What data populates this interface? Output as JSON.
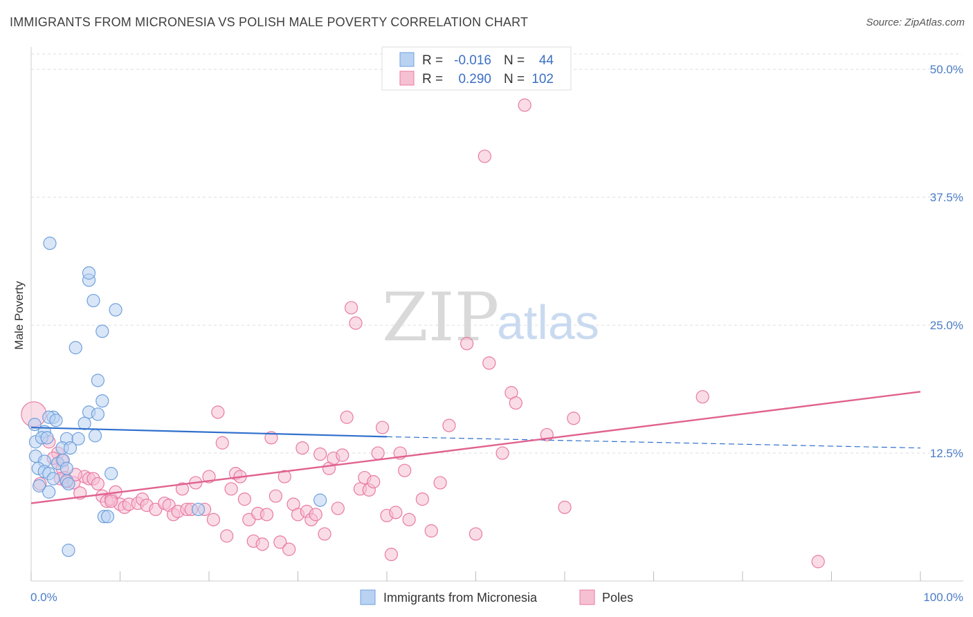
{
  "title": "IMMIGRANTS FROM MICRONESIA VS POLISH MALE POVERTY CORRELATION CHART",
  "source": "Source: ZipAtlas.com",
  "watermark": {
    "zip": "ZIP",
    "atlas": "atlas"
  },
  "colors": {
    "blue": "#6fa0dc",
    "blue_fill": "#b9d2f2",
    "pink": "#e87aa0",
    "pink_fill": "#f6c0d3",
    "blue_line": "#2f6fcc",
    "pink_line": "#e0628f",
    "axis_text": "#4a7cc7",
    "grid": "#dddddd"
  },
  "legend": {
    "rows": [
      {
        "r_label": "R =",
        "r_value": "-0.016",
        "n_label": "N =",
        "n_value": "44"
      },
      {
        "r_label": "R =",
        "r_value": "0.290",
        "n_label": "N =",
        "n_value": "102"
      }
    ]
  },
  "chart_data": {
    "type": "scatter",
    "title": "IMMIGRANTS FROM MICRONESIA VS POLISH MALE POVERTY CORRELATION CHART",
    "xlabel": "",
    "ylabel": "Male Poverty",
    "xlim": [
      0,
      100
    ],
    "ylim": [
      0,
      51.5
    ],
    "x_tick_labels": [
      "0.0%",
      "100.0%"
    ],
    "y_ticks": [
      12.5,
      25.0,
      37.5,
      50.0
    ],
    "y_tick_labels": [
      "12.5%",
      "25.0%",
      "37.5%",
      "50.0%"
    ],
    "grid": true,
    "legend_position": "top-center",
    "series": [
      {
        "name": "Immigrants from Micronesia",
        "color": "#6fa0dc",
        "trend": {
          "x": [
            0,
            40
          ],
          "y": [
            15.0,
            14.1
          ],
          "dashed_to": [
            100,
            13.0
          ]
        },
        "points": [
          [
            2.1,
            33.0
          ],
          [
            6.5,
            29.4
          ],
          [
            6.5,
            30.1
          ],
          [
            7.0,
            27.4
          ],
          [
            9.5,
            26.5
          ],
          [
            8.0,
            24.4
          ],
          [
            5.0,
            22.8
          ],
          [
            7.5,
            19.6
          ],
          [
            8.0,
            17.6
          ],
          [
            2.5,
            16.0
          ],
          [
            6.5,
            16.5
          ],
          [
            2.0,
            16.0
          ],
          [
            7.5,
            16.3
          ],
          [
            2.8,
            15.7
          ],
          [
            6.0,
            15.4
          ],
          [
            0.5,
            13.6
          ],
          [
            1.5,
            14.6
          ],
          [
            1.2,
            14.0
          ],
          [
            1.8,
            14.0
          ],
          [
            4.0,
            13.9
          ],
          [
            5.3,
            13.9
          ],
          [
            7.2,
            14.2
          ],
          [
            3.5,
            13.0
          ],
          [
            4.4,
            13.0
          ],
          [
            0.5,
            12.2
          ],
          [
            1.5,
            11.7
          ],
          [
            3.0,
            11.5
          ],
          [
            3.6,
            11.8
          ],
          [
            4.0,
            11.0
          ],
          [
            0.8,
            11.0
          ],
          [
            1.5,
            10.7
          ],
          [
            2.0,
            10.5
          ],
          [
            2.5,
            10.0
          ],
          [
            4.0,
            9.8
          ],
          [
            9.0,
            10.5
          ],
          [
            0.9,
            9.3
          ],
          [
            2.0,
            8.7
          ],
          [
            4.2,
            9.5
          ],
          [
            8.2,
            6.3
          ],
          [
            8.6,
            6.3
          ],
          [
            18.8,
            7.0
          ],
          [
            32.5,
            7.9
          ],
          [
            4.2,
            3.0
          ],
          [
            0.4,
            15.3
          ]
        ]
      },
      {
        "name": "Poles",
        "color": "#e87aa0",
        "trend": {
          "x": [
            0,
            100
          ],
          "y": [
            7.6,
            18.5
          ]
        },
        "points": [
          [
            0.3,
            16.3
          ],
          [
            2.0,
            13.6
          ],
          [
            3.0,
            12.5
          ],
          [
            3.0,
            11.5
          ],
          [
            3.5,
            11.0
          ],
          [
            3.8,
            10.1
          ],
          [
            3.3,
            10.0
          ],
          [
            4.0,
            9.7
          ],
          [
            4.8,
            9.6
          ],
          [
            5.5,
            8.6
          ],
          [
            6.0,
            10.2
          ],
          [
            6.5,
            10.0
          ],
          [
            7.0,
            10.0
          ],
          [
            7.5,
            9.5
          ],
          [
            8.0,
            8.3
          ],
          [
            8.5,
            7.8
          ],
          [
            9.0,
            8.0
          ],
          [
            9.5,
            8.7
          ],
          [
            10.0,
            7.5
          ],
          [
            10.5,
            7.2
          ],
          [
            11.0,
            7.5
          ],
          [
            12.0,
            7.6
          ],
          [
            12.5,
            8.0
          ],
          [
            13.0,
            7.4
          ],
          [
            14.0,
            7.0
          ],
          [
            15.0,
            7.6
          ],
          [
            15.5,
            7.4
          ],
          [
            16.0,
            6.5
          ],
          [
            16.5,
            6.8
          ],
          [
            17.0,
            9.0
          ],
          [
            17.5,
            7.0
          ],
          [
            18.0,
            7.0
          ],
          [
            18.5,
            9.6
          ],
          [
            19.5,
            7.0
          ],
          [
            20.0,
            10.2
          ],
          [
            20.5,
            6.0
          ],
          [
            21.0,
            16.5
          ],
          [
            21.5,
            13.5
          ],
          [
            22.0,
            4.4
          ],
          [
            22.5,
            9.0
          ],
          [
            23.0,
            10.5
          ],
          [
            23.5,
            10.2
          ],
          [
            24.0,
            8.0
          ],
          [
            24.5,
            6.0
          ],
          [
            25.0,
            3.9
          ],
          [
            25.5,
            6.6
          ],
          [
            26.0,
            3.6
          ],
          [
            26.5,
            6.5
          ],
          [
            27.0,
            14.0
          ],
          [
            27.5,
            8.3
          ],
          [
            28.0,
            3.8
          ],
          [
            28.5,
            10.2
          ],
          [
            29.0,
            3.1
          ],
          [
            29.5,
            7.5
          ],
          [
            30.0,
            6.5
          ],
          [
            30.5,
            13.0
          ],
          [
            31.0,
            6.8
          ],
          [
            31.5,
            6.0
          ],
          [
            32.0,
            6.5
          ],
          [
            32.5,
            12.4
          ],
          [
            33.0,
            4.6
          ],
          [
            33.5,
            11.0
          ],
          [
            34.0,
            12.0
          ],
          [
            34.5,
            7.1
          ],
          [
            35.0,
            12.3
          ],
          [
            35.5,
            16.0
          ],
          [
            36.0,
            26.7
          ],
          [
            36.5,
            25.2
          ],
          [
            37.0,
            9.0
          ],
          [
            37.5,
            10.1
          ],
          [
            38.0,
            8.9
          ],
          [
            38.5,
            9.7
          ],
          [
            39.0,
            12.5
          ],
          [
            39.5,
            15.0
          ],
          [
            40.0,
            6.4
          ],
          [
            40.5,
            2.6
          ],
          [
            41.0,
            6.7
          ],
          [
            41.5,
            12.5
          ],
          [
            42.0,
            10.8
          ],
          [
            42.5,
            6.0
          ],
          [
            44.0,
            8.0
          ],
          [
            45.0,
            4.9
          ],
          [
            46.0,
            9.6
          ],
          [
            47.0,
            15.2
          ],
          [
            49.0,
            23.2
          ],
          [
            50.0,
            4.6
          ],
          [
            51.0,
            41.5
          ],
          [
            51.5,
            21.3
          ],
          [
            53.0,
            12.5
          ],
          [
            54.0,
            18.4
          ],
          [
            54.5,
            17.4
          ],
          [
            55.5,
            46.5
          ],
          [
            58.0,
            14.3
          ],
          [
            60.0,
            7.2
          ],
          [
            61.0,
            15.9
          ],
          [
            75.5,
            18.0
          ],
          [
            88.5,
            1.9
          ],
          [
            2.5,
            12.0
          ],
          [
            5.0,
            10.4
          ],
          [
            1.0,
            9.5
          ],
          [
            3.5,
            11.8
          ],
          [
            9.0,
            7.8
          ]
        ]
      }
    ]
  }
}
